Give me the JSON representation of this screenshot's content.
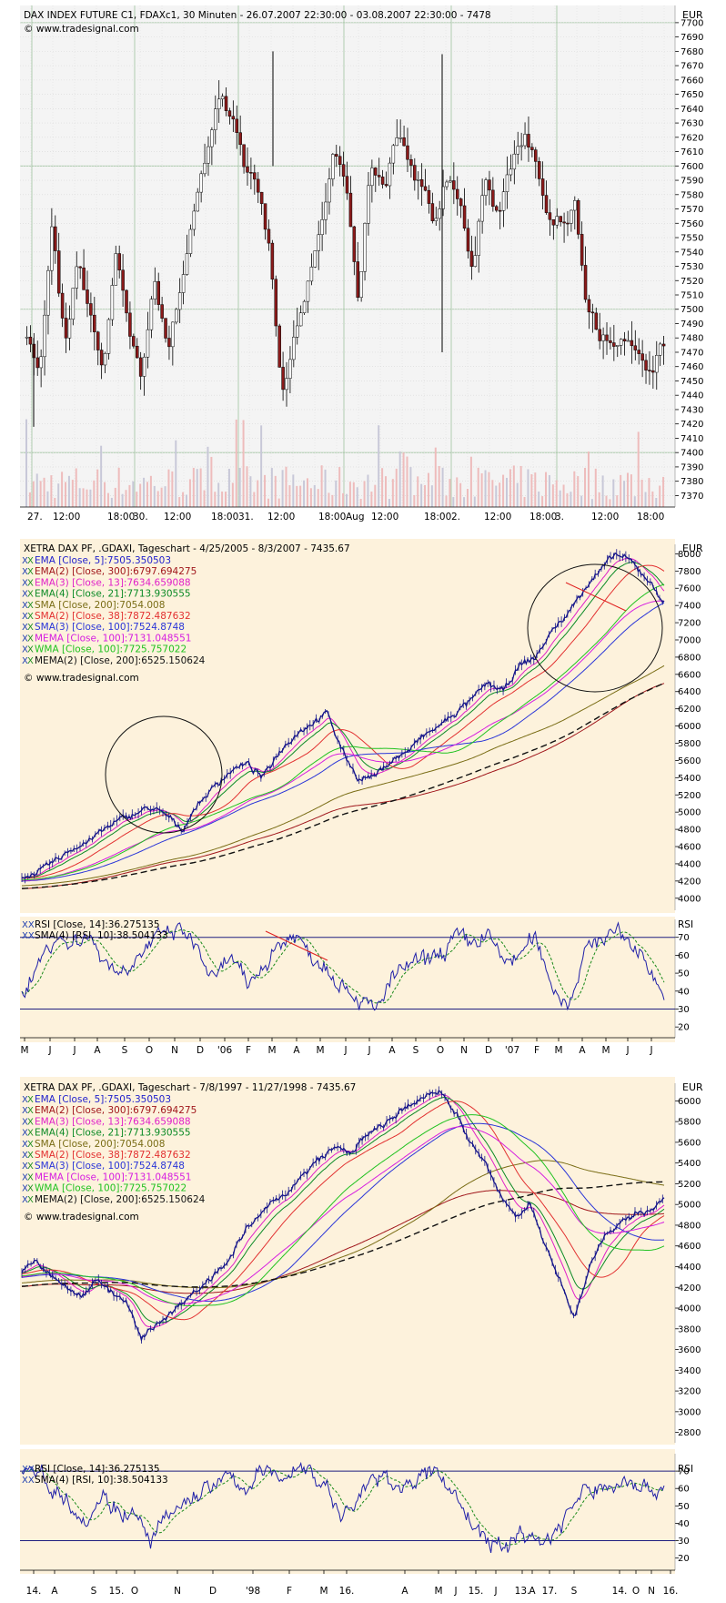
{
  "copyright": "© www.tradesignal.com",
  "chart_data": [
    {
      "type": "candlestick",
      "title": "DAX INDEX FUTURE C1, FDAXc1, 30 Minuten - 26.07.2007 22:30:00 - 03.08.2007 22:30:00 - 7478",
      "currency": "EUR",
      "y_ticks": [
        7370,
        7380,
        7390,
        7400,
        7410,
        7420,
        7430,
        7440,
        7450,
        7460,
        7470,
        7480,
        7490,
        7500,
        7510,
        7520,
        7530,
        7540,
        7550,
        7560,
        7570,
        7580,
        7590,
        7600,
        7610,
        7620,
        7630,
        7640,
        7650,
        7660,
        7670,
        7680,
        7690,
        7700
      ],
      "ylim": [
        7362,
        7712
      ],
      "x_labels": [
        "27.",
        "12:00",
        "18:00",
        "30.",
        "12:00",
        "18:00",
        "31.",
        "12:00",
        "18:00",
        "Aug",
        "12:00",
        "18:00",
        "2.",
        "12:00",
        "18:00",
        "3.",
        "12:00",
        "18:00"
      ],
      "close_path": [
        7480,
        7445,
        7560,
        7470,
        7540,
        7500,
        7450,
        7540,
        7490,
        7460,
        7520,
        7470,
        7510,
        7560,
        7600,
        7640,
        7640,
        7600,
        7590,
        7545,
        7440,
        7480,
        7520,
        7560,
        7610,
        7590,
        7500,
        7600,
        7580,
        7620,
        7600,
        7580,
        7560,
        7595,
        7580,
        7520,
        7595,
        7570,
        7600,
        7620,
        7600,
        7560,
        7555,
        7575,
        7500,
        7480,
        7480,
        7470,
        7475,
        7460,
        7478
      ],
      "high": 7680,
      "low": 7418,
      "volume_note": "Volume bars (relative) along bottom of price panel"
    },
    {
      "type": "line",
      "title": "XETRA DAX PF, .GDAXI, Tageschart - 4/25/2005 - 8/3/2007 - 7435.67",
      "currency": "EUR",
      "legend": [
        {
          "label": "EMA [Close, 5]:7505.350503",
          "color": "#1f1fcc"
        },
        {
          "label": "EMA(2) [Close, 300]:6797.694275",
          "color": "#a0161b"
        },
        {
          "label": "EMA(3) [Close, 13]:7634.659088",
          "color": "#e020c8"
        },
        {
          "label": "EMA(4) [Close, 21]:7713.930555",
          "color": "#0a8a25"
        },
        {
          "label": "SMA [Close, 200]:7054.008",
          "color": "#7a6d16"
        },
        {
          "label": "SMA(2) [Close, 38]:7872.487632",
          "color": "#e23030"
        },
        {
          "label": "SMA(3) [Close, 100]:7524.8748",
          "color": "#2a35d8"
        },
        {
          "label": "MEMA [Close, 100]:7131.048551",
          "color": "#d61ee0"
        },
        {
          "label": "WMA [Close, 100]:7725.757022",
          "color": "#20c220"
        },
        {
          "label": "MEMA(2) [Close, 200]:6525.150624",
          "color": "#111111"
        }
      ],
      "y_ticks": [
        4000,
        4200,
        4400,
        4600,
        4800,
        5000,
        5200,
        5400,
        5600,
        5800,
        6000,
        6200,
        6400,
        6600,
        6800,
        7000,
        7200,
        7400,
        7600,
        7800,
        8000
      ],
      "ylim": [
        3860,
        8110
      ],
      "x_labels": [
        "M",
        "J",
        "J",
        "A",
        "S",
        "O",
        "N",
        "D",
        "'06",
        "F",
        "M",
        "A",
        "M",
        "J",
        "J",
        "A",
        "S",
        "O",
        "N",
        "D",
        "'07",
        "F",
        "M",
        "A",
        "M",
        "J",
        "J"
      ],
      "close_path": [
        4250,
        4300,
        4420,
        4560,
        4650,
        4780,
        4900,
        4980,
        5050,
        4960,
        4800,
        5100,
        5300,
        5480,
        5560,
        5400,
        5700,
        5900,
        6030,
        6150,
        5700,
        5380,
        5420,
        5600,
        5700,
        5880,
        6000,
        6150,
        6300,
        6500,
        6400,
        6700,
        6800,
        7100,
        7300,
        7600,
        7800,
        8000,
        7900,
        7700,
        7436
      ],
      "rsi": {
        "legend": [
          {
            "label": "RSI [Close, 14]:36.275135",
            "color": "#1f1fa8"
          },
          {
            "label": "SMA(4) [RSI, 10]:38.504133",
            "color": "#1a8a1a"
          }
        ],
        "y_ticks": [
          20,
          30,
          40,
          50,
          60,
          70
        ],
        "ylim": [
          14,
          80
        ],
        "levels": [
          30,
          70
        ],
        "values": [
          38,
          55,
          70,
          66,
          72,
          60,
          50,
          58,
          66,
          72,
          74,
          62,
          44,
          60,
          42,
          54,
          66,
          72,
          60,
          54,
          44,
          36,
          28,
          46,
          54,
          56,
          60,
          70,
          66,
          72,
          56,
          60,
          70,
          44,
          32,
          60,
          70,
          74,
          66,
          56,
          36
        ]
      },
      "annotations": [
        "circle around Dec 2005 rally",
        "circle around Apr-Jul 2007 top",
        "red divergence line on price",
        "red divergence line on RSI"
      ]
    },
    {
      "type": "line",
      "title": "XETRA DAX PF, .GDAXI, Tageschart - 7/8/1997 - 11/27/1998 - 7435.67",
      "currency": "EUR",
      "legend": [
        {
          "label": "EMA [Close, 5]:7505.350503",
          "color": "#1f1fcc"
        },
        {
          "label": "EMA(2) [Close, 300]:6797.694275",
          "color": "#a0161b"
        },
        {
          "label": "EMA(3) [Close, 13]:7634.659088",
          "color": "#e020c8"
        },
        {
          "label": "EMA(4) [Close, 21]:7713.930555",
          "color": "#0a8a25"
        },
        {
          "label": "SMA [Close, 200]:7054.008",
          "color": "#7a6d16"
        },
        {
          "label": "SMA(2) [Close, 38]:7872.487632",
          "color": "#e23030"
        },
        {
          "label": "SMA(3) [Close, 100]:7524.8748",
          "color": "#2a35d8"
        },
        {
          "label": "MEMA [Close, 100]:7131.048551",
          "color": "#d61ee0"
        },
        {
          "label": "WMA [Close, 100]:7725.757022",
          "color": "#20c220"
        },
        {
          "label": "MEMA(2) [Close, 200]:6525.150624",
          "color": "#111111"
        }
      ],
      "y_ticks": [
        2800,
        3000,
        3200,
        3400,
        3600,
        3800,
        4000,
        4200,
        4400,
        4600,
        4800,
        5000,
        5200,
        5400,
        5600,
        5800,
        6000
      ],
      "ylim": [
        2700,
        6170
      ],
      "x_labels": [
        "14.",
        "A",
        "S",
        "15.",
        "O",
        "N",
        "D",
        "'98",
        "F",
        "M",
        "16.",
        "A",
        "M",
        "J",
        "15.",
        "J",
        "13.",
        "A",
        "17.",
        "S",
        "14.",
        "O",
        "N",
        "16."
      ],
      "close_path": [
        4350,
        4450,
        4300,
        4200,
        4100,
        4300,
        4150,
        4050,
        3700,
        3850,
        3950,
        4100,
        4200,
        4350,
        4500,
        4750,
        4900,
        5050,
        5150,
        5300,
        5450,
        5550,
        5500,
        5650,
        5750,
        5850,
        5950,
        6050,
        6100,
        5900,
        5600,
        5400,
        5100,
        4900,
        5000,
        4600,
        4300,
        3900,
        4400,
        4700,
        4800,
        4900,
        4950,
        5050
      ],
      "rsi": {
        "legend": [
          {
            "label": "RSI [Close, 14]:36.275135",
            "color": "#1f1fa8"
          },
          {
            "label": "SMA(4) [RSI, 10]:38.504133",
            "color": "#1a8a1a"
          }
        ],
        "y_ticks": [
          20,
          30,
          40,
          50,
          60,
          70
        ],
        "ylim": [
          13,
          80
        ],
        "levels": [
          30,
          70
        ],
        "values": [
          72,
          70,
          60,
          52,
          42,
          56,
          48,
          44,
          30,
          42,
          50,
          58,
          62,
          66,
          60,
          70,
          66,
          72,
          70,
          60,
          42,
          56,
          66,
          64,
          62,
          66,
          70,
          56,
          40,
          30,
          24,
          36,
          30,
          32,
          46,
          58,
          60,
          62,
          66,
          58,
          62
        ]
      }
    }
  ]
}
